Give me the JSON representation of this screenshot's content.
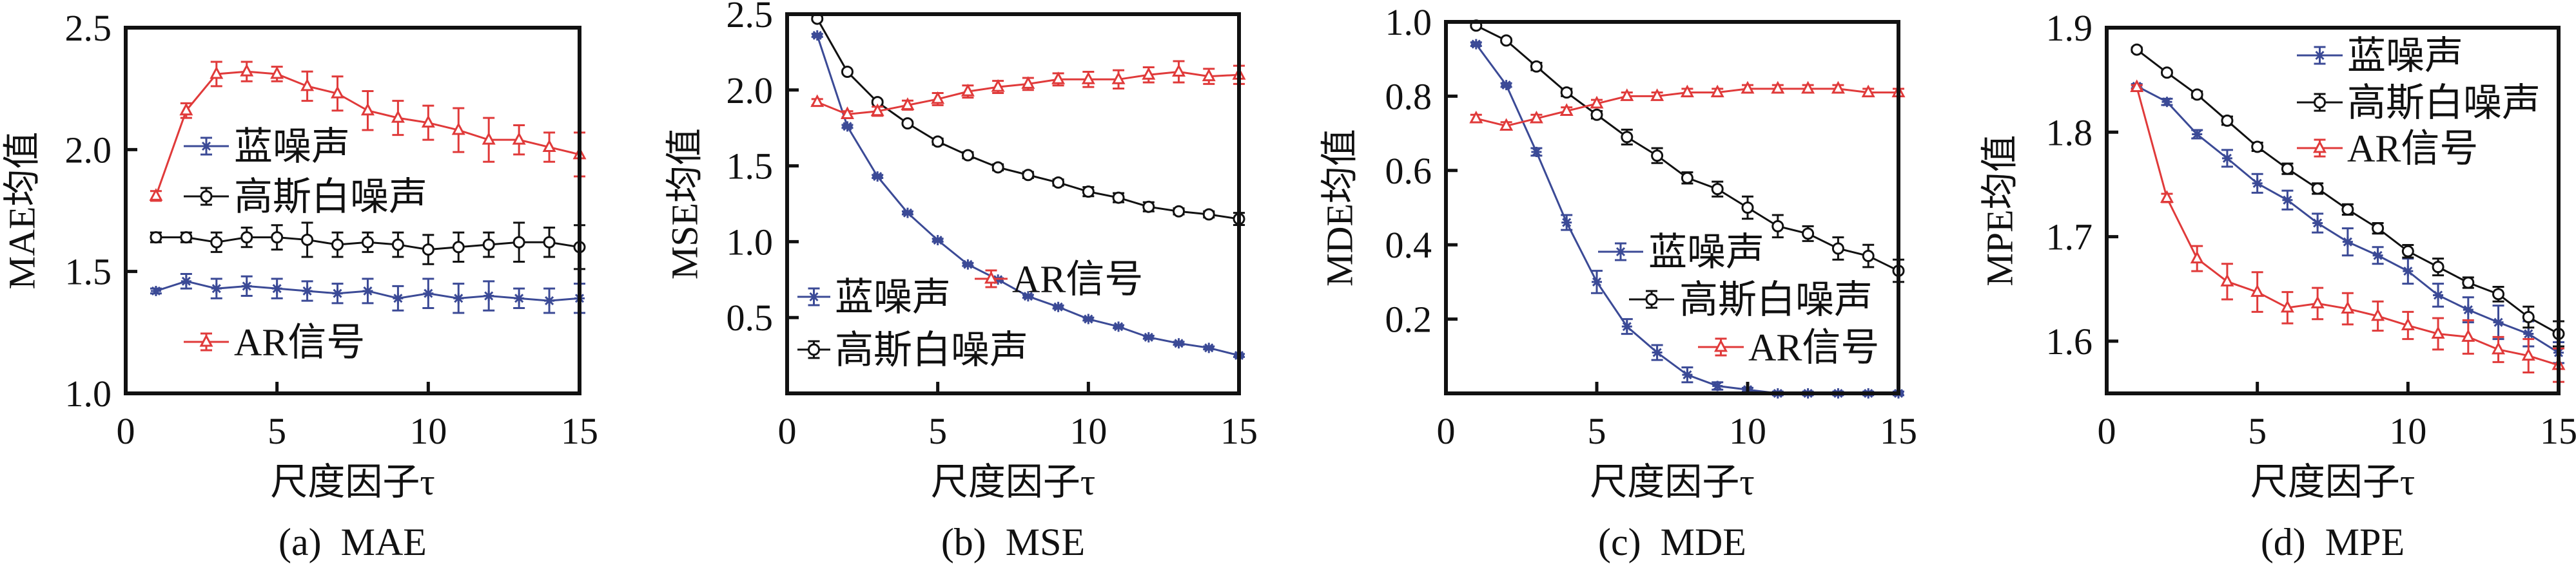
{
  "figure": {
    "x_label": "尺度因子τ",
    "colors": {
      "blue_noise": "#3b4a96",
      "gaussian_white_noise": "#111111",
      "ar_signal": "#e03a3a",
      "axis": "#111111"
    }
  },
  "chart_data": [
    {
      "id": "a",
      "type": "line",
      "caption": "(a)  MAE",
      "title": "MAE",
      "xlabel": "尺度因子τ",
      "ylabel": "MAE均值",
      "xlim": [
        0,
        15
      ],
      "ylim": [
        1.0,
        2.5
      ],
      "xticks": [
        0,
        5,
        10,
        15
      ],
      "xtick_labels": [
        "0",
        "5",
        "10",
        "15"
      ],
      "yticks": [
        1.0,
        1.5,
        2.0,
        2.5
      ],
      "ytick_labels": [
        "1.0",
        "1.5",
        "2.0",
        "2.5"
      ],
      "grid": false,
      "legend_position": "center-left",
      "x": [
        1,
        2,
        3,
        4,
        5,
        6,
        7,
        8,
        9,
        10,
        11,
        12,
        13,
        14,
        15
      ],
      "series": [
        {
          "name": "蓝噪声",
          "key": "blue_noise",
          "marker": "asterisk",
          "values": [
            1.42,
            1.46,
            1.43,
            1.44,
            1.43,
            1.42,
            1.41,
            1.42,
            1.39,
            1.41,
            1.39,
            1.4,
            1.39,
            1.38,
            1.39
          ],
          "errors": [
            0.01,
            0.03,
            0.04,
            0.04,
            0.04,
            0.04,
            0.04,
            0.05,
            0.05,
            0.06,
            0.06,
            0.06,
            0.04,
            0.05,
            0.06
          ]
        },
        {
          "name": "高斯白噪声",
          "key": "gaussian_white_noise",
          "marker": "circle",
          "values": [
            1.64,
            1.64,
            1.62,
            1.64,
            1.64,
            1.63,
            1.61,
            1.62,
            1.61,
            1.59,
            1.6,
            1.61,
            1.62,
            1.62,
            1.6
          ],
          "errors": [
            0.02,
            0.02,
            0.04,
            0.04,
            0.05,
            0.07,
            0.05,
            0.04,
            0.05,
            0.06,
            0.06,
            0.05,
            0.08,
            0.06,
            0.09
          ]
        },
        {
          "name": "AR信号",
          "key": "ar_signal",
          "marker": "triangle",
          "values": [
            1.81,
            2.16,
            2.31,
            2.32,
            2.31,
            2.26,
            2.23,
            2.16,
            2.13,
            2.11,
            2.08,
            2.04,
            2.04,
            2.01,
            1.98
          ],
          "errors": [
            0.02,
            0.03,
            0.05,
            0.04,
            0.03,
            0.06,
            0.07,
            0.08,
            0.07,
            0.07,
            0.09,
            0.09,
            0.06,
            0.06,
            0.09
          ]
        }
      ]
    },
    {
      "id": "b",
      "type": "line",
      "caption": "(b)  MSE",
      "title": "MSE",
      "xlabel": "尺度因子τ",
      "ylabel": "MSE均值",
      "xlim": [
        0,
        15
      ],
      "ylim": [
        0,
        2.5
      ],
      "xticks": [
        0,
        5,
        10,
        15
      ],
      "xtick_labels": [
        "0",
        "5",
        "10",
        "15"
      ],
      "yticks": [
        0.5,
        1.0,
        1.5,
        2.0,
        2.5
      ],
      "ytick_labels": [
        "0.5",
        "1.0",
        "1.5",
        "2.0",
        "2.5"
      ],
      "grid": false,
      "legend_position": "bottom-left",
      "x": [
        1,
        2,
        3,
        4,
        5,
        6,
        7,
        8,
        9,
        10,
        11,
        12,
        13,
        14,
        15
      ],
      "series": [
        {
          "name": "蓝噪声",
          "key": "blue_noise",
          "marker": "asterisk",
          "values": [
            2.36,
            1.76,
            1.43,
            1.19,
            1.01,
            0.85,
            0.75,
            0.64,
            0.57,
            0.49,
            0.44,
            0.37,
            0.33,
            0.3,
            0.25
          ],
          "errors": [
            0.01,
            0.01,
            0.01,
            0.01,
            0.01,
            0.01,
            0.01,
            0.01,
            0.01,
            0.01,
            0.01,
            0.01,
            0.01,
            0.01,
            0.01
          ]
        },
        {
          "name": "高斯白噪声",
          "key": "gaussian_white_noise",
          "marker": "circle",
          "values": [
            2.47,
            2.12,
            1.92,
            1.78,
            1.66,
            1.57,
            1.49,
            1.44,
            1.39,
            1.33,
            1.29,
            1.23,
            1.2,
            1.18,
            1.15
          ],
          "errors": [
            0.01,
            0.01,
            0.01,
            0.01,
            0.02,
            0.02,
            0.02,
            0.02,
            0.02,
            0.03,
            0.03,
            0.03,
            0.02,
            0.02,
            0.04
          ]
        },
        {
          "name": "AR信号",
          "key": "ar_signal",
          "marker": "triangle",
          "values": [
            1.92,
            1.84,
            1.86,
            1.9,
            1.94,
            1.99,
            2.02,
            2.04,
            2.07,
            2.07,
            2.07,
            2.1,
            2.12,
            2.09,
            2.1
          ],
          "errors": [
            0.02,
            0.02,
            0.03,
            0.03,
            0.04,
            0.04,
            0.04,
            0.04,
            0.04,
            0.05,
            0.06,
            0.05,
            0.07,
            0.05,
            0.06
          ]
        }
      ]
    },
    {
      "id": "c",
      "type": "line",
      "caption": "(c)  MDE",
      "title": "MDE",
      "xlabel": "尺度因子τ",
      "ylabel": "MDE均值",
      "xlim": [
        0,
        15
      ],
      "ylim": [
        0,
        1.0
      ],
      "xticks": [
        0,
        5,
        10,
        15
      ],
      "xtick_labels": [
        "0",
        "5",
        "10",
        "15"
      ],
      "yticks": [
        0.2,
        0.4,
        0.6,
        0.8,
        1.0
      ],
      "ytick_labels": [
        "0.2",
        "0.4",
        "0.6",
        "0.8",
        "1.0"
      ],
      "grid": false,
      "legend_position": "bottom-right",
      "x": [
        1,
        2,
        3,
        4,
        5,
        6,
        7,
        8,
        9,
        10,
        11,
        12,
        13,
        14,
        15
      ],
      "series": [
        {
          "name": "蓝噪声",
          "key": "blue_noise",
          "marker": "asterisk",
          "values": [
            0.94,
            0.83,
            0.65,
            0.46,
            0.3,
            0.18,
            0.11,
            0.05,
            0.02,
            0.01,
            0.0,
            0.0,
            0.0,
            0.0,
            0.0
          ],
          "errors": [
            0.005,
            0.005,
            0.01,
            0.02,
            0.03,
            0.02,
            0.02,
            0.02,
            0.01,
            0.005,
            0.005,
            0.005,
            0.005,
            0.005,
            0.005
          ]
        },
        {
          "name": "高斯白噪声",
          "key": "gaussian_white_noise",
          "marker": "circle",
          "values": [
            0.99,
            0.95,
            0.88,
            0.81,
            0.75,
            0.69,
            0.64,
            0.58,
            0.55,
            0.5,
            0.45,
            0.43,
            0.39,
            0.37,
            0.33
          ],
          "errors": [
            0.005,
            0.005,
            0.01,
            0.01,
            0.01,
            0.02,
            0.02,
            0.015,
            0.02,
            0.03,
            0.03,
            0.02,
            0.03,
            0.03,
            0.03
          ]
        },
        {
          "name": "AR信号",
          "key": "ar_signal",
          "marker": "triangle",
          "values": [
            0.74,
            0.72,
            0.74,
            0.76,
            0.78,
            0.8,
            0.8,
            0.81,
            0.81,
            0.82,
            0.82,
            0.82,
            0.82,
            0.81,
            0.81
          ],
          "errors": [
            0.01,
            0.01,
            0.01,
            0.01,
            0.01,
            0.01,
            0.01,
            0.01,
            0.01,
            0.01,
            0.01,
            0.01,
            0.01,
            0.01,
            0.01
          ]
        }
      ]
    },
    {
      "id": "d",
      "type": "line",
      "caption": "(d)  MPE",
      "title": "MPE",
      "xlabel": "尺度因子τ",
      "ylabel": "MPE均值",
      "xlim": [
        0,
        15
      ],
      "ylim": [
        1.55,
        1.9
      ],
      "xticks": [
        0,
        5,
        10,
        15
      ],
      "xtick_labels": [
        "0",
        "5",
        "10",
        "15"
      ],
      "yticks": [
        1.6,
        1.7,
        1.8,
        1.9
      ],
      "ytick_labels": [
        "1.6",
        "1.7",
        "1.8",
        "1.9"
      ],
      "grid": false,
      "legend_position": "top-right",
      "x": [
        1,
        2,
        3,
        4,
        5,
        6,
        7,
        8,
        9,
        10,
        11,
        12,
        13,
        14,
        15
      ],
      "series": [
        {
          "name": "蓝噪声",
          "key": "blue_noise",
          "marker": "asterisk",
          "values": [
            1.844,
            1.829,
            1.798,
            1.775,
            1.751,
            1.735,
            1.713,
            1.695,
            1.682,
            1.667,
            1.644,
            1.63,
            1.618,
            1.607,
            1.589
          ],
          "errors": [
            0.002,
            0.003,
            0.004,
            0.008,
            0.009,
            0.009,
            0.009,
            0.013,
            0.008,
            0.012,
            0.011,
            0.012,
            0.016,
            0.012,
            0.01
          ]
        },
        {
          "name": "高斯白噪声",
          "key": "gaussian_white_noise",
          "marker": "circle",
          "values": [
            1.879,
            1.857,
            1.836,
            1.811,
            1.786,
            1.765,
            1.746,
            1.726,
            1.708,
            1.686,
            1.671,
            1.656,
            1.645,
            1.623,
            1.607
          ],
          "errors": [
            0.002,
            0.002,
            0.003,
            0.004,
            0.004,
            0.005,
            0.005,
            0.005,
            0.005,
            0.006,
            0.008,
            0.005,
            0.007,
            0.01,
            0.012
          ]
        },
        {
          "name": "AR信号",
          "key": "ar_signal",
          "marker": "triangle",
          "values": [
            1.843,
            1.737,
            1.679,
            1.657,
            1.647,
            1.632,
            1.636,
            1.631,
            1.624,
            1.615,
            1.607,
            1.604,
            1.592,
            1.586,
            1.577
          ],
          "errors": [
            0.002,
            0.004,
            0.012,
            0.017,
            0.019,
            0.015,
            0.015,
            0.015,
            0.014,
            0.013,
            0.015,
            0.016,
            0.012,
            0.016,
            0.016
          ]
        }
      ]
    }
  ]
}
